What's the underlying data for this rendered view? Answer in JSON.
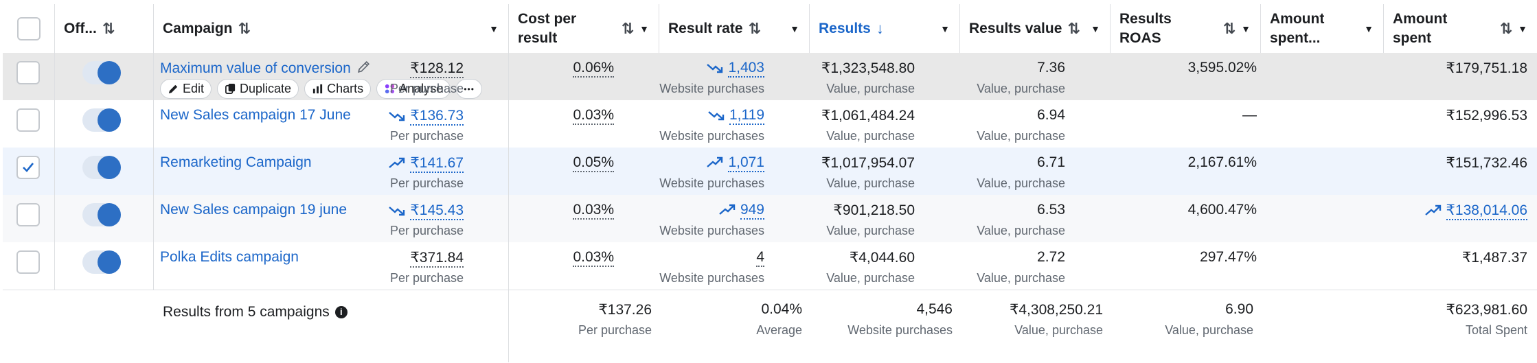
{
  "headers": {
    "off": "Off...",
    "campaign": "Campaign",
    "cost_per_result": "Cost per result",
    "result_rate": "Result rate",
    "results": "Results",
    "results_value": "Results value",
    "results_roas": "Results ROAS",
    "amount_spent_pct": "Amount spent...",
    "amount_spent": "Amount spent"
  },
  "sort_icons": {
    "both": "⇅",
    "down": "↓"
  },
  "caret": "▼",
  "actions": {
    "edit": "Edit",
    "duplicate": "Duplicate",
    "charts": "Charts",
    "analyse": "Analyse",
    "more": "•••"
  },
  "rows": [
    {
      "name": "Maximum value of conversion",
      "checked": false,
      "cost": "₹128.12",
      "cost_sub": "Per purchase",
      "cost_trend": "",
      "rate": "0.06%",
      "results": "1,403",
      "results_sub": "Website purchases",
      "results_trend": "down",
      "value": "₹1,323,548.80",
      "value_sub": "Value, purchase",
      "roas": "7.36",
      "roas_sub": "Value, purchase",
      "spent_pct": "3,595.02%",
      "spent": "₹179,751.18",
      "spent_trend": ""
    },
    {
      "name": "New Sales campaign 17 June",
      "checked": false,
      "cost": "₹136.73",
      "cost_sub": "Per purchase",
      "cost_trend": "down",
      "rate": "0.03%",
      "results": "1,119",
      "results_sub": "Website purchases",
      "results_trend": "down",
      "value": "₹1,061,484.24",
      "value_sub": "Value, purchase",
      "roas": "6.94",
      "roas_sub": "Value, purchase",
      "spent_pct": "—",
      "spent": "₹152,996.53",
      "spent_trend": ""
    },
    {
      "name": "Remarketing Campaign",
      "checked": true,
      "cost": "₹141.67",
      "cost_sub": "Per purchase",
      "cost_trend": "up",
      "rate": "0.05%",
      "results": "1,071",
      "results_sub": "Website purchases",
      "results_trend": "up",
      "value": "₹1,017,954.07",
      "value_sub": "Value, purchase",
      "roas": "6.71",
      "roas_sub": "Value, purchase",
      "spent_pct": "2,167.61%",
      "spent": "₹151,732.46",
      "spent_trend": ""
    },
    {
      "name": "New Sales campaign 19 june",
      "checked": false,
      "cost": "₹145.43",
      "cost_sub": "Per purchase",
      "cost_trend": "down",
      "rate": "0.03%",
      "results": "949",
      "results_sub": "Website purchases",
      "results_trend": "up",
      "value": "₹901,218.50",
      "value_sub": "Value, purchase",
      "roas": "6.53",
      "roas_sub": "Value, purchase",
      "spent_pct": "4,600.47%",
      "spent": "₹138,014.06",
      "spent_trend": "up"
    },
    {
      "name": "Polka Edits campaign",
      "checked": false,
      "cost": "₹371.84",
      "cost_sub": "Per purchase",
      "cost_trend": "",
      "rate": "0.03%",
      "results": "4",
      "results_sub": "Website purchases",
      "results_trend": "",
      "value": "₹4,044.60",
      "value_sub": "Value, purchase",
      "roas": "2.72",
      "roas_sub": "Value, purchase",
      "spent_pct": "297.47%",
      "spent": "₹1,487.37",
      "spent_trend": ""
    }
  ],
  "totals": {
    "label": "Results from 5 campaigns",
    "info": "i",
    "cost": "₹137.26",
    "cost_sub": "Per purchase",
    "rate": "0.04%",
    "rate_sub": "Average",
    "results": "4,546",
    "results_sub": "Website purchases",
    "value": "₹4,308,250.21",
    "value_sub": "Value, purchase",
    "roas": "6.90",
    "roas_sub": "Value, purchase",
    "spent": "₹623,981.60",
    "spent_sub": "Total Spent"
  },
  "colors": {
    "link": "#1b66c9",
    "row_hover": "#e8e8e8",
    "row_selected": "#eef4fd",
    "toggle_knob": "#2d6fc4"
  }
}
